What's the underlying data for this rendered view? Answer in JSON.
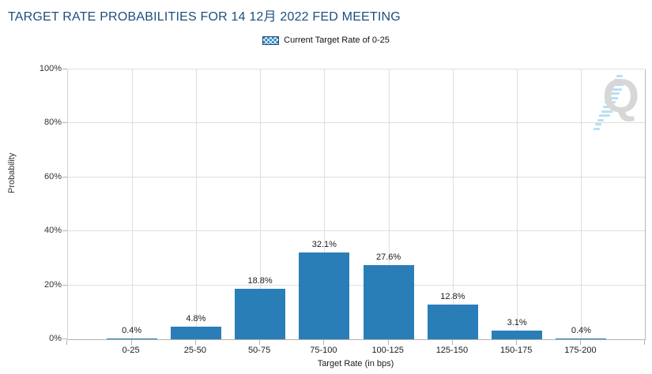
{
  "header": {
    "title": "TARGET RATE PROBABILITIES FOR 14 12月 2022 FED MEETING"
  },
  "legend": {
    "label": "Current Target Rate of 0-25"
  },
  "watermark": {
    "letter": "Q"
  },
  "chart_data": {
    "type": "bar",
    "title": "TARGET RATE PROBABILITIES FOR 14 12月 2022 FED MEETING",
    "categories": [
      "0-25",
      "25-50",
      "50-75",
      "75-100",
      "100-125",
      "125-150",
      "150-175",
      "175-200"
    ],
    "values": [
      0.4,
      4.8,
      18.8,
      32.1,
      27.6,
      12.8,
      3.1,
      0.4
    ],
    "value_labels": [
      "0.4%",
      "4.8%",
      "18.8%",
      "32.1%",
      "27.6%",
      "12.8%",
      "3.1%",
      "0.4%"
    ],
    "xlabel": "Target Rate (in bps)",
    "ylabel": "Probability",
    "ylim": [
      0,
      100
    ],
    "yticks": [
      0,
      20,
      40,
      60,
      80,
      100
    ],
    "ytick_labels": [
      "0%",
      "20%",
      "40%",
      "60%",
      "80%",
      "100%"
    ],
    "grid": true,
    "legend_position": "top-center",
    "legend_entries": [
      "Current Target Rate of 0-25"
    ]
  },
  "colors": {
    "title": "#1d4f7c",
    "bar": "#2a7eb8",
    "grid": "#dedede",
    "axis": "#b3b3b3",
    "watermark_gray": "#d7d7d7",
    "watermark_blue": "#b9dff2"
  }
}
